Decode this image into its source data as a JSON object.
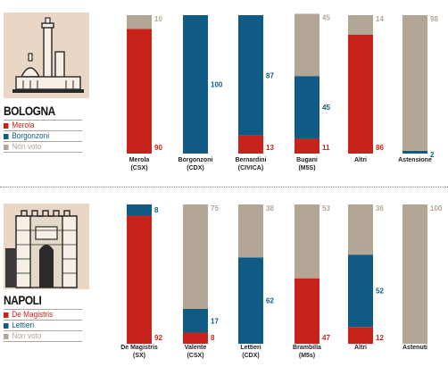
{
  "colors": {
    "red": "#c8231b",
    "blue": "#0f5b86",
    "grey": "#b3a696",
    "illustration_bg": "#e9d6c4",
    "divider": "#888888"
  },
  "panels": [
    {
      "city": "BOLOGNA",
      "legend": [
        {
          "label": "Merola",
          "color": "#c8231b"
        },
        {
          "label": "Borgonzoni",
          "color": "#0f5b86"
        },
        {
          "label": "Non voto",
          "color": "#b3a696"
        }
      ]
    },
    {
      "city": "NAPOLI",
      "legend": [
        {
          "label": "De Magistris",
          "color": "#c8231b"
        },
        {
          "label": "Lettieri",
          "color": "#0f5b86"
        },
        {
          "label": "Non voto",
          "color": "#b3a696"
        }
      ]
    }
  ],
  "chart_data": [
    {
      "type": "bar",
      "stacked": true,
      "city": "BOLOGNA",
      "categories": [
        [
          "Merola",
          "(CSX)"
        ],
        [
          "Borgonzoni",
          "(CDX)"
        ],
        [
          "Bernardini",
          "(CIVICA)"
        ],
        [
          "Bugani",
          "(M5S)"
        ],
        [
          "Altri"
        ],
        [
          "Astensione"
        ]
      ],
      "series": [
        {
          "name": "Merola",
          "color": "#c8231b",
          "values": [
            90,
            0,
            13,
            11,
            86,
            0
          ]
        },
        {
          "name": "Borgonzoni",
          "color": "#0f5b86",
          "values": [
            0,
            100,
            87,
            45,
            0,
            2
          ]
        },
        {
          "name": "Non voto",
          "color": "#b3a696",
          "values": [
            10,
            0,
            0,
            45,
            14,
            98
          ]
        }
      ],
      "ylim": [
        0,
        100
      ]
    },
    {
      "type": "bar",
      "stacked": true,
      "city": "NAPOLI",
      "categories": [
        [
          "De Magistris",
          "(SX)"
        ],
        [
          "Valente",
          "(CSX)"
        ],
        [
          "Lettieri",
          "(CDX)"
        ],
        [
          "Brambilla",
          "(M5s)"
        ],
        [
          "Altri"
        ],
        [
          "Astenuti"
        ]
      ],
      "series": [
        {
          "name": "De Magistris",
          "color": "#c8231b",
          "values": [
            92,
            8,
            0,
            47,
            12,
            0
          ]
        },
        {
          "name": "Lettieri",
          "color": "#0f5b86",
          "values": [
            8,
            17,
            62,
            0,
            52,
            0
          ]
        },
        {
          "name": "Non voto",
          "color": "#b3a696",
          "values": [
            0,
            75,
            38,
            53,
            36,
            100
          ]
        }
      ],
      "ylim": [
        0,
        100
      ]
    }
  ]
}
